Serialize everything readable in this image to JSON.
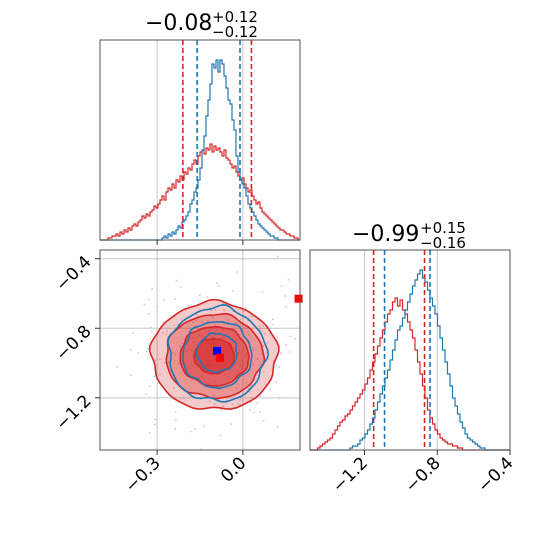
{
  "chart_data": {
    "type": "corner",
    "colors": {
      "blue": "#1f77b4",
      "red": "#d62728",
      "marker_blue": "#0000ff",
      "marker_red": "#ff0000"
    },
    "parameters": [
      {
        "title": {
          "median": "−0.08",
          "upper": "+0.12",
          "lower": "−0.12"
        }
      },
      {
        "title": {
          "median": "−0.99",
          "upper": "+0.15",
          "lower": "−0.16"
        }
      }
    ],
    "marginal_x": {
      "xlim": [
        -0.5,
        0.2
      ],
      "grid": [
        -0.3,
        0.0
      ],
      "ylim": [
        0,
        1
      ],
      "quantiles": {
        "blue": [
          -0.16,
          -0.01
        ],
        "red": [
          -0.21,
          0.03
        ]
      },
      "hist_blue": {
        "edges": [
          -0.5,
          0.2
        ],
        "counts": [
          0,
          0,
          0,
          0,
          0,
          0,
          0,
          0,
          0,
          0,
          0,
          0,
          0,
          0,
          0,
          0,
          0,
          0,
          0,
          0,
          0,
          0,
          0,
          0,
          0,
          0,
          0,
          0,
          0,
          0,
          0,
          0.01,
          0.02,
          0.01,
          0.03,
          0.02,
          0.04,
          0.03,
          0.05,
          0.07,
          0.06,
          0.09,
          0.1,
          0.12,
          0.14,
          0.18,
          0.2,
          0.24,
          0.26,
          0.3,
          0.36,
          0.45,
          0.52,
          0.62,
          0.7,
          0.78,
          0.88,
          0.86,
          0.9,
          0.84,
          0.9,
          0.88,
          0.82,
          0.76,
          0.7,
          0.68,
          0.6,
          0.55,
          0.42,
          0.34,
          0.3,
          0.28,
          0.26,
          0.22,
          0.18,
          0.16,
          0.14,
          0.12,
          0.1,
          0.08,
          0.07,
          0.06,
          0.05,
          0.04,
          0.03,
          0.02,
          0.02,
          0.01,
          0.01,
          0,
          0,
          0,
          0,
          0,
          0,
          0,
          0,
          0,
          0,
          0
        ]
      },
      "hist_red": {
        "edges": [
          -0.5,
          0.2
        ],
        "counts": [
          0,
          0,
          0,
          0,
          0.01,
          0.01,
          0.02,
          0.02,
          0.03,
          0.02,
          0.04,
          0.03,
          0.05,
          0.04,
          0.06,
          0.05,
          0.07,
          0.08,
          0.07,
          0.09,
          0.1,
          0.12,
          0.11,
          0.13,
          0.12,
          0.14,
          0.15,
          0.17,
          0.16,
          0.18,
          0.2,
          0.22,
          0.2,
          0.24,
          0.26,
          0.25,
          0.28,
          0.26,
          0.3,
          0.29,
          0.32,
          0.3,
          0.34,
          0.33,
          0.36,
          0.35,
          0.38,
          0.4,
          0.38,
          0.42,
          0.44,
          0.45,
          0.43,
          0.46,
          0.45,
          0.48,
          0.44,
          0.47,
          0.45,
          0.46,
          0.44,
          0.42,
          0.45,
          0.41,
          0.4,
          0.38,
          0.36,
          0.37,
          0.34,
          0.32,
          0.3,
          0.31,
          0.28,
          0.26,
          0.24,
          0.25,
          0.22,
          0.2,
          0.18,
          0.19,
          0.16,
          0.14,
          0.13,
          0.12,
          0.11,
          0.1,
          0.09,
          0.08,
          0.07,
          0.06,
          0.05,
          0.05,
          0.04,
          0.03,
          0.03,
          0.02,
          0.02,
          0.01,
          0.01,
          0
        ]
      }
    },
    "marginal_y": {
      "xlim": [
        -1.5,
        -0.4
      ],
      "grid": [
        -1.2,
        -0.8,
        -0.4
      ],
      "ticks": [
        {
          "value": -1.2,
          "label": "−1.2"
        },
        {
          "value": -0.8,
          "label": "−0.8"
        },
        {
          "value": -0.4,
          "label": "−0.4"
        }
      ],
      "quantiles": {
        "blue": [
          -1.09,
          -0.84
        ],
        "red": [
          -1.15,
          -0.87
        ]
      },
      "hist_blue": {
        "edges": [
          -1.5,
          -0.4
        ],
        "counts": [
          0,
          0,
          0,
          0,
          0,
          0,
          0,
          0,
          0,
          0,
          0,
          0,
          0,
          0,
          0,
          0,
          0.01,
          0.02,
          0.02,
          0.03,
          0.05,
          0.06,
          0.08,
          0.1,
          0.13,
          0.16,
          0.2,
          0.24,
          0.28,
          0.32,
          0.36,
          0.4,
          0.45,
          0.5,
          0.55,
          0.6,
          0.62,
          0.66,
          0.7,
          0.74,
          0.78,
          0.82,
          0.85,
          0.88,
          0.9,
          0.86,
          0.84,
          0.8,
          0.76,
          0.72,
          0.68,
          0.62,
          0.56,
          0.5,
          0.44,
          0.38,
          0.32,
          0.26,
          0.22,
          0.18,
          0.14,
          0.11,
          0.08,
          0.06,
          0.05,
          0.04,
          0.03,
          0.02,
          0.01,
          0.01,
          0,
          0,
          0,
          0,
          0,
          0,
          0,
          0,
          0,
          0
        ]
      },
      "hist_red": {
        "edges": [
          -1.5,
          -0.4
        ],
        "counts": [
          0,
          0,
          0,
          0.01,
          0.02,
          0.03,
          0.04,
          0.05,
          0.06,
          0.08,
          0.1,
          0.12,
          0.14,
          0.15,
          0.17,
          0.18,
          0.2,
          0.22,
          0.24,
          0.26,
          0.28,
          0.3,
          0.33,
          0.36,
          0.4,
          0.44,
          0.48,
          0.52,
          0.56,
          0.6,
          0.64,
          0.68,
          0.7,
          0.74,
          0.76,
          0.72,
          0.75,
          0.7,
          0.68,
          0.64,
          0.6,
          0.56,
          0.5,
          0.44,
          0.38,
          0.32,
          0.26,
          0.2,
          0.16,
          0.13,
          0.1,
          0.08,
          0.06,
          0.05,
          0.04,
          0.03,
          0.03,
          0.02,
          0.02,
          0.01,
          0.01,
          0,
          0,
          0,
          0,
          0,
          0,
          0,
          0,
          0,
          0,
          0,
          0,
          0,
          0,
          0,
          0,
          0,
          0,
          0
        ]
      }
    },
    "joint": {
      "xlim": [
        -0.5,
        0.2
      ],
      "ylim": [
        -1.5,
        -0.35
      ],
      "xgrid": [
        -0.3,
        0.0
      ],
      "ygrid": [
        -1.2,
        -0.8,
        -0.4
      ],
      "xticks": [
        {
          "value": -0.3,
          "label": "−0.3"
        },
        {
          "value": 0.0,
          "label": "0.0"
        }
      ],
      "yticks": [
        {
          "value": -0.4,
          "label": "−0.4"
        },
        {
          "value": -0.8,
          "label": "−0.8"
        },
        {
          "value": -1.2,
          "label": "−1.2"
        }
      ],
      "red_contours": [
        {
          "cx": -0.1,
          "cy": -0.96,
          "rx": 0.22,
          "ry": 0.31,
          "fill_opacity": 0.45
        },
        {
          "cx": -0.1,
          "cy": -0.96,
          "rx": 0.17,
          "ry": 0.24,
          "fill_opacity": 0.6
        },
        {
          "cx": -0.1,
          "cy": -0.96,
          "rx": 0.12,
          "ry": 0.17,
          "fill_opacity": 0.85
        },
        {
          "cx": -0.1,
          "cy": -0.96,
          "rx": 0.07,
          "ry": 0.1,
          "fill_opacity": 1.0
        }
      ],
      "blue_contours": [
        {
          "cx": -0.09,
          "cy": -0.95,
          "rx": 0.17,
          "ry": 0.27
        },
        {
          "cx": -0.09,
          "cy": -0.95,
          "rx": 0.12,
          "ry": 0.19
        },
        {
          "cx": -0.09,
          "cy": -0.94,
          "rx": 0.07,
          "ry": 0.11
        }
      ],
      "markers": [
        {
          "color": "blue",
          "x": -0.09,
          "y": -0.93
        },
        {
          "color": "red",
          "x": -0.08,
          "y": -0.97
        },
        {
          "color": "red",
          "x": 0.195,
          "y": -0.63
        }
      ]
    }
  }
}
